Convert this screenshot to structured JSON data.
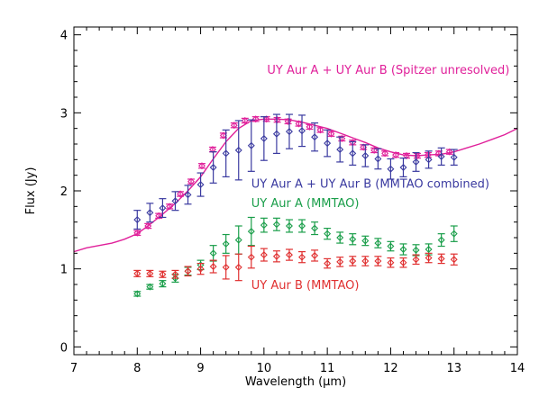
{
  "chart_data": {
    "type": "scatter",
    "xlabel": "Wavelength (μm)",
    "ylabel": "Flux (Jy)",
    "xlim": [
      7,
      14
    ],
    "ylim": [
      -0.1,
      4.1
    ],
    "x_ticks": [
      "7",
      "8",
      "9",
      "10",
      "11",
      "12",
      "13",
      "14"
    ],
    "y_ticks": [
      "0",
      "1",
      "2",
      "3",
      "4"
    ],
    "annotations": [
      {
        "text": "UY Aur A + UY Aur B (Spitzer unresolved)",
        "x": 10.05,
        "y": 3.5,
        "color": "#e0209a"
      },
      {
        "text": "UY Aur A + UY Aur B (MMTAO combined)",
        "x": 9.8,
        "y": 2.04,
        "color": "#3a3aa0"
      },
      {
        "text": "UY Aur A (MMTAO)",
        "x": 9.8,
        "y": 1.79,
        "color": "#1a9e4a"
      },
      {
        "text": "UY Aur B (MMTAO)",
        "x": 9.8,
        "y": 0.74,
        "color": "#e03030"
      }
    ],
    "series": [
      {
        "name": "UY Aur A + UY Aur B (Spitzer unresolved)",
        "kind": "line",
        "color": "#e0209a",
        "x": [
          7.0,
          7.2,
          7.4,
          7.6,
          7.8,
          8.0,
          8.2,
          8.4,
          8.6,
          8.8,
          9.0,
          9.2,
          9.4,
          9.6,
          9.8,
          10.0,
          10.2,
          10.4,
          10.6,
          10.8,
          11.0,
          11.2,
          11.4,
          11.6,
          11.8,
          12.0,
          12.2,
          12.4,
          12.6,
          12.8,
          13.0,
          13.2,
          13.4,
          13.6,
          13.8,
          14.0
        ],
        "y": [
          1.22,
          1.27,
          1.3,
          1.33,
          1.38,
          1.45,
          1.57,
          1.7,
          1.84,
          2.0,
          2.18,
          2.41,
          2.63,
          2.8,
          2.9,
          2.92,
          2.92,
          2.91,
          2.88,
          2.84,
          2.8,
          2.74,
          2.68,
          2.62,
          2.55,
          2.5,
          2.46,
          2.45,
          2.46,
          2.47,
          2.5,
          2.55,
          2.6,
          2.66,
          2.72,
          2.8
        ]
      },
      {
        "name": "UY Aur A + UY Aur B (Spitzer unresolved)",
        "kind": "points",
        "color": "#e0209a",
        "x": [
          8.0,
          8.17,
          8.34,
          8.51,
          8.68,
          8.85,
          9.02,
          9.19,
          9.36,
          9.53,
          9.7,
          9.87,
          10.04,
          10.21,
          10.38,
          10.55,
          10.72,
          10.89,
          11.06,
          11.23,
          11.4,
          11.57,
          11.74,
          11.91,
          12.08,
          12.25,
          12.42,
          12.59,
          12.76,
          12.93
        ],
        "y": [
          1.46,
          1.55,
          1.68,
          1.8,
          1.96,
          2.12,
          2.32,
          2.53,
          2.71,
          2.84,
          2.9,
          2.92,
          2.92,
          2.91,
          2.89,
          2.86,
          2.82,
          2.78,
          2.73,
          2.67,
          2.62,
          2.56,
          2.52,
          2.48,
          2.46,
          2.45,
          2.45,
          2.46,
          2.48,
          2.5
        ],
        "err": [
          0.03,
          0.03,
          0.03,
          0.03,
          0.03,
          0.03,
          0.03,
          0.03,
          0.03,
          0.03,
          0.03,
          0.03,
          0.03,
          0.03,
          0.03,
          0.03,
          0.03,
          0.03,
          0.03,
          0.03,
          0.03,
          0.03,
          0.03,
          0.03,
          0.03,
          0.03,
          0.03,
          0.03,
          0.03,
          0.03
        ]
      },
      {
        "name": "UY Aur A + UY Aur B (MMTAO combined)",
        "kind": "points",
        "color": "#3a3aa0",
        "x": [
          8.0,
          8.2,
          8.4,
          8.6,
          8.8,
          9.0,
          9.2,
          9.4,
          9.6,
          9.8,
          10.0,
          10.2,
          10.4,
          10.6,
          10.8,
          11.0,
          11.2,
          11.4,
          11.6,
          11.8,
          12.0,
          12.2,
          12.4,
          12.6,
          12.8,
          13.0
        ],
        "y": [
          1.63,
          1.72,
          1.78,
          1.87,
          1.95,
          2.08,
          2.3,
          2.48,
          2.52,
          2.58,
          2.67,
          2.73,
          2.76,
          2.77,
          2.69,
          2.61,
          2.53,
          2.48,
          2.45,
          2.41,
          2.28,
          2.3,
          2.37,
          2.4,
          2.44,
          2.43
        ],
        "err": [
          0.12,
          0.12,
          0.12,
          0.12,
          0.12,
          0.15,
          0.2,
          0.3,
          0.38,
          0.33,
          0.28,
          0.25,
          0.22,
          0.2,
          0.18,
          0.17,
          0.16,
          0.15,
          0.14,
          0.13,
          0.13,
          0.12,
          0.12,
          0.11,
          0.11,
          0.1
        ]
      },
      {
        "name": "UY Aur A (MMTAO)",
        "kind": "points",
        "color": "#1a9e4a",
        "x": [
          8.0,
          8.2,
          8.4,
          8.6,
          8.8,
          9.0,
          9.2,
          9.4,
          9.6,
          9.8,
          10.0,
          10.2,
          10.4,
          10.6,
          10.8,
          11.0,
          11.2,
          11.4,
          11.6,
          11.8,
          12.0,
          12.2,
          12.4,
          12.6,
          12.8,
          13.0
        ],
        "y": [
          0.68,
          0.77,
          0.81,
          0.88,
          0.97,
          1.05,
          1.2,
          1.32,
          1.37,
          1.48,
          1.56,
          1.57,
          1.55,
          1.55,
          1.52,
          1.45,
          1.4,
          1.38,
          1.36,
          1.33,
          1.29,
          1.25,
          1.24,
          1.25,
          1.37,
          1.45
        ],
        "err": [
          0.03,
          0.03,
          0.04,
          0.05,
          0.05,
          0.06,
          0.1,
          0.12,
          0.18,
          0.18,
          0.09,
          0.08,
          0.08,
          0.08,
          0.08,
          0.07,
          0.07,
          0.07,
          0.06,
          0.06,
          0.06,
          0.07,
          0.07,
          0.07,
          0.08,
          0.1
        ]
      },
      {
        "name": "UY Aur B (MMTAO)",
        "kind": "points",
        "color": "#e03030",
        "x": [
          8.0,
          8.2,
          8.4,
          8.6,
          8.8,
          9.0,
          9.2,
          9.4,
          9.6,
          9.8,
          10.0,
          10.2,
          10.4,
          10.6,
          10.8,
          11.0,
          11.2,
          11.4,
          11.6,
          11.8,
          12.0,
          12.2,
          12.4,
          12.6,
          12.8,
          13.0
        ],
        "y": [
          0.94,
          0.94,
          0.93,
          0.93,
          0.97,
          1.0,
          1.03,
          1.02,
          1.02,
          1.15,
          1.18,
          1.16,
          1.18,
          1.15,
          1.17,
          1.07,
          1.09,
          1.1,
          1.1,
          1.1,
          1.08,
          1.08,
          1.12,
          1.14,
          1.13,
          1.12
        ],
        "err": [
          0.04,
          0.04,
          0.04,
          0.05,
          0.06,
          0.07,
          0.08,
          0.15,
          0.17,
          0.14,
          0.08,
          0.07,
          0.07,
          0.07,
          0.07,
          0.06,
          0.06,
          0.06,
          0.06,
          0.06,
          0.06,
          0.06,
          0.06,
          0.06,
          0.06,
          0.07
        ]
      }
    ]
  }
}
